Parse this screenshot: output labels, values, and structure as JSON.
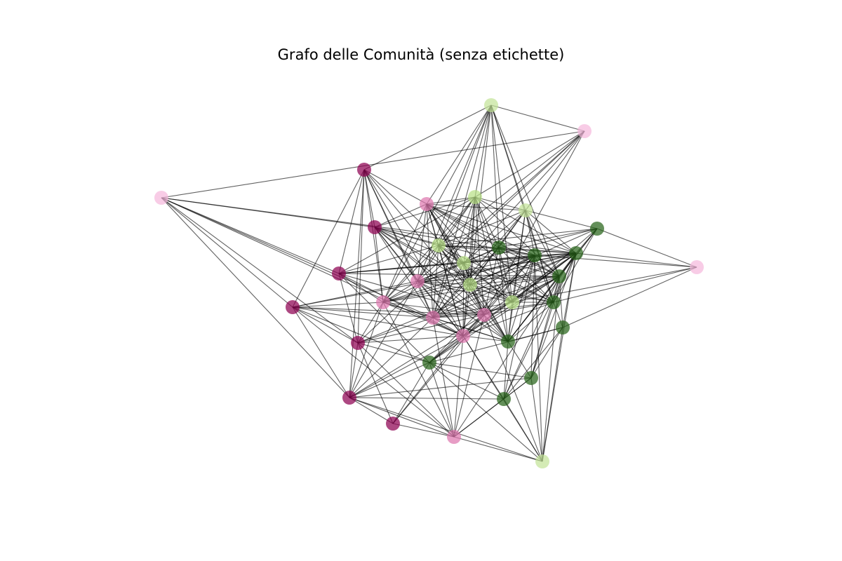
{
  "title": "Grafo delle Comunità (senza etichette)",
  "colors": {
    "edge": "#000000",
    "communities": [
      "#8e0152",
      "#de77ae",
      "#b8e186",
      "#276419",
      "#f5b8dc",
      "#c3e398"
    ]
  },
  "nodes": [
    {
      "id": 0,
      "community": 5
    },
    {
      "id": 1,
      "community": 4
    },
    {
      "id": 2,
      "community": 0
    },
    {
      "id": 3,
      "community": 4
    },
    {
      "id": 4,
      "community": 0
    },
    {
      "id": 5,
      "community": 2
    },
    {
      "id": 6,
      "community": 1
    },
    {
      "id": 7,
      "community": 0
    },
    {
      "id": 8,
      "community": 5
    },
    {
      "id": 9,
      "community": 0
    },
    {
      "id": 10,
      "community": 2
    },
    {
      "id": 11,
      "community": 3
    },
    {
      "id": 12,
      "community": 2
    },
    {
      "id": 13,
      "community": 0
    },
    {
      "id": 14,
      "community": 1
    },
    {
      "id": 15,
      "community": 3
    },
    {
      "id": 16,
      "community": 1
    },
    {
      "id": 17,
      "community": 2
    },
    {
      "id": 18,
      "community": 0
    },
    {
      "id": 19,
      "community": 1
    },
    {
      "id": 20,
      "community": 1
    },
    {
      "id": 21,
      "community": 2
    },
    {
      "id": 22,
      "community": 1
    },
    {
      "id": 23,
      "community": 3
    },
    {
      "id": 24,
      "community": 3
    },
    {
      "id": 25,
      "community": 0
    },
    {
      "id": 26,
      "community": 3
    },
    {
      "id": 27,
      "community": 1
    },
    {
      "id": 28,
      "community": 5
    },
    {
      "id": 29,
      "community": 3
    },
    {
      "id": 30,
      "community": 3
    },
    {
      "id": 31,
      "community": 3
    },
    {
      "id": 32,
      "community": 3
    },
    {
      "id": 33,
      "community": 4
    },
    {
      "id": 34,
      "community": 3
    },
    {
      "id": 35,
      "community": 3
    }
  ],
  "edges": [
    [
      0,
      1
    ],
    [
      0,
      2
    ],
    [
      0,
      5
    ],
    [
      0,
      6
    ],
    [
      0,
      8
    ],
    [
      0,
      10
    ],
    [
      0,
      11
    ],
    [
      0,
      14
    ],
    [
      0,
      16
    ],
    [
      0,
      17
    ],
    [
      0,
      19
    ],
    [
      0,
      21
    ],
    [
      0,
      26
    ],
    [
      0,
      31
    ],
    [
      1,
      3
    ],
    [
      1,
      5
    ],
    [
      1,
      8
    ],
    [
      1,
      10
    ],
    [
      1,
      12
    ],
    [
      1,
      13
    ],
    [
      1,
      14
    ],
    [
      1,
      20
    ],
    [
      2,
      4
    ],
    [
      2,
      7
    ],
    [
      2,
      9
    ],
    [
      2,
      12
    ],
    [
      2,
      13
    ],
    [
      2,
      14
    ],
    [
      2,
      16
    ],
    [
      2,
      19
    ],
    [
      2,
      20
    ],
    [
      2,
      22
    ],
    [
      2,
      25
    ],
    [
      2,
      26
    ],
    [
      3,
      4
    ],
    [
      3,
      7
    ],
    [
      3,
      9
    ],
    [
      3,
      13
    ],
    [
      3,
      19
    ],
    [
      3,
      22
    ],
    [
      3,
      24
    ],
    [
      3,
      25
    ],
    [
      4,
      5
    ],
    [
      4,
      6
    ],
    [
      4,
      10
    ],
    [
      4,
      12
    ],
    [
      4,
      14
    ],
    [
      4,
      16
    ],
    [
      4,
      17
    ],
    [
      4,
      19
    ],
    [
      4,
      20
    ],
    [
      4,
      21
    ],
    [
      4,
      22
    ],
    [
      4,
      23
    ],
    [
      4,
      26
    ],
    [
      4,
      30
    ],
    [
      5,
      6
    ],
    [
      5,
      7
    ],
    [
      5,
      8
    ],
    [
      5,
      10
    ],
    [
      5,
      11
    ],
    [
      5,
      12
    ],
    [
      5,
      14
    ],
    [
      5,
      16
    ],
    [
      5,
      17
    ],
    [
      5,
      19
    ],
    [
      5,
      20
    ],
    [
      5,
      21
    ],
    [
      5,
      22
    ],
    [
      5,
      24
    ],
    [
      5,
      26
    ],
    [
      5,
      30
    ],
    [
      6,
      8
    ],
    [
      6,
      10
    ],
    [
      6,
      11
    ],
    [
      6,
      12
    ],
    [
      6,
      14
    ],
    [
      6,
      16
    ],
    [
      6,
      17
    ],
    [
      6,
      19
    ],
    [
      6,
      20
    ],
    [
      6,
      21
    ],
    [
      6,
      22
    ],
    [
      6,
      23
    ],
    [
      6,
      24
    ],
    [
      6,
      30
    ],
    [
      6,
      31
    ],
    [
      7,
      10
    ],
    [
      7,
      12
    ],
    [
      7,
      13
    ],
    [
      7,
      16
    ],
    [
      7,
      20
    ],
    [
      7,
      22
    ],
    [
      7,
      23
    ],
    [
      7,
      24
    ],
    [
      7,
      26
    ],
    [
      7,
      29
    ],
    [
      8,
      10
    ],
    [
      8,
      11
    ],
    [
      8,
      12
    ],
    [
      8,
      15
    ],
    [
      8,
      17
    ],
    [
      8,
      19
    ],
    [
      8,
      21
    ],
    [
      8,
      23
    ],
    [
      8,
      24
    ],
    [
      8,
      26
    ],
    [
      8,
      30
    ],
    [
      8,
      31
    ],
    [
      9,
      13
    ],
    [
      9,
      14
    ],
    [
      9,
      16
    ],
    [
      9,
      19
    ],
    [
      9,
      20
    ],
    [
      9,
      22
    ],
    [
      9,
      24
    ],
    [
      9,
      25
    ],
    [
      9,
      27
    ],
    [
      9,
      29
    ],
    [
      10,
      11
    ],
    [
      10,
      12
    ],
    [
      10,
      14
    ],
    [
      10,
      15
    ],
    [
      10,
      16
    ],
    [
      10,
      17
    ],
    [
      10,
      19
    ],
    [
      10,
      20
    ],
    [
      10,
      21
    ],
    [
      10,
      22
    ],
    [
      10,
      23
    ],
    [
      10,
      24
    ],
    [
      10,
      30
    ],
    [
      10,
      31
    ],
    [
      11,
      12
    ],
    [
      11,
      14
    ],
    [
      11,
      15
    ],
    [
      11,
      17
    ],
    [
      11,
      19
    ],
    [
      11,
      20
    ],
    [
      11,
      21
    ],
    [
      11,
      23
    ],
    [
      11,
      24
    ],
    [
      11,
      26
    ],
    [
      11,
      30
    ],
    [
      11,
      31
    ],
    [
      12,
      14
    ],
    [
      12,
      15
    ],
    [
      12,
      16
    ],
    [
      12,
      17
    ],
    [
      12,
      19
    ],
    [
      12,
      20
    ],
    [
      12,
      21
    ],
    [
      12,
      22
    ],
    [
      12,
      23
    ],
    [
      12,
      24
    ],
    [
      12,
      30
    ],
    [
      12,
      31
    ],
    [
      13,
      16
    ],
    [
      13,
      18
    ],
    [
      13,
      19
    ],
    [
      13,
      20
    ],
    [
      13,
      22
    ],
    [
      13,
      24
    ],
    [
      13,
      25
    ],
    [
      13,
      27
    ],
    [
      13,
      29
    ],
    [
      14,
      16
    ],
    [
      14,
      17
    ],
    [
      14,
      19
    ],
    [
      14,
      20
    ],
    [
      14,
      21
    ],
    [
      14,
      22
    ],
    [
      14,
      23
    ],
    [
      14,
      24
    ],
    [
      14,
      25
    ],
    [
      14,
      26
    ],
    [
      14,
      30
    ],
    [
      14,
      31
    ],
    [
      15,
      17
    ],
    [
      15,
      21
    ],
    [
      15,
      24
    ],
    [
      15,
      26
    ],
    [
      15,
      30
    ],
    [
      15,
      31
    ],
    [
      15,
      33
    ],
    [
      16,
      17
    ],
    [
      16,
      19
    ],
    [
      16,
      20
    ],
    [
      16,
      22
    ],
    [
      16,
      23
    ],
    [
      16,
      24
    ],
    [
      16,
      25
    ],
    [
      16,
      26
    ],
    [
      16,
      27
    ],
    [
      16,
      30
    ],
    [
      17,
      19
    ],
    [
      17,
      20
    ],
    [
      17,
      21
    ],
    [
      17,
      22
    ],
    [
      17,
      23
    ],
    [
      17,
      24
    ],
    [
      17,
      26
    ],
    [
      17,
      30
    ],
    [
      17,
      31
    ],
    [
      18,
      20
    ],
    [
      18,
      22
    ],
    [
      18,
      25
    ],
    [
      18,
      27
    ],
    [
      18,
      29
    ],
    [
      19,
      20
    ],
    [
      19,
      21
    ],
    [
      19,
      22
    ],
    [
      19,
      23
    ],
    [
      19,
      24
    ],
    [
      19,
      25
    ],
    [
      19,
      26
    ],
    [
      19,
      27
    ],
    [
      19,
      30
    ],
    [
      19,
      31
    ],
    [
      20,
      21
    ],
    [
      20,
      22
    ],
    [
      20,
      23
    ],
    [
      20,
      24
    ],
    [
      20,
      25
    ],
    [
      20,
      26
    ],
    [
      20,
      27
    ],
    [
      20,
      28
    ],
    [
      20,
      29
    ],
    [
      20,
      30
    ],
    [
      20,
      31
    ],
    [
      21,
      23
    ],
    [
      21,
      24
    ],
    [
      21,
      26
    ],
    [
      21,
      30
    ],
    [
      21,
      31
    ],
    [
      21,
      33
    ],
    [
      22,
      23
    ],
    [
      22,
      24
    ],
    [
      22,
      25
    ],
    [
      22,
      26
    ],
    [
      22,
      27
    ],
    [
      22,
      28
    ],
    [
      22,
      29
    ],
    [
      22,
      30
    ],
    [
      22,
      31
    ],
    [
      22,
      32
    ],
    [
      23,
      24
    ],
    [
      23,
      26
    ],
    [
      23,
      28
    ],
    [
      23,
      29
    ],
    [
      23,
      30
    ],
    [
      23,
      31
    ],
    [
      23,
      32
    ],
    [
      23,
      33
    ],
    [
      23,
      34
    ],
    [
      24,
      26
    ],
    [
      24,
      27
    ],
    [
      24,
      28
    ],
    [
      24,
      29
    ],
    [
      24,
      30
    ],
    [
      24,
      31
    ],
    [
      24,
      32
    ],
    [
      24,
      33
    ],
    [
      24,
      34
    ],
    [
      24,
      35
    ],
    [
      25,
      27
    ],
    [
      25,
      28
    ],
    [
      25,
      29
    ],
    [
      25,
      32
    ],
    [
      25,
      34
    ],
    [
      26,
      28
    ],
    [
      26,
      29
    ],
    [
      26,
      30
    ],
    [
      26,
      31
    ],
    [
      26,
      32
    ],
    [
      26,
      34
    ],
    [
      26,
      35
    ],
    [
      27,
      28
    ],
    [
      27,
      29
    ],
    [
      27,
      32
    ],
    [
      27,
      34
    ],
    [
      28,
      29
    ],
    [
      28,
      32
    ],
    [
      28,
      34
    ],
    [
      28,
      35
    ],
    [
      29,
      32
    ],
    [
      29,
      34
    ],
    [
      29,
      35
    ],
    [
      30,
      31
    ],
    [
      30,
      32
    ],
    [
      30,
      34
    ],
    [
      30,
      35
    ],
    [
      31,
      33
    ],
    [
      31,
      34
    ],
    [
      31,
      35
    ],
    [
      32,
      34
    ],
    [
      32,
      35
    ],
    [
      33,
      35
    ],
    [
      34,
      35
    ]
  ]
}
